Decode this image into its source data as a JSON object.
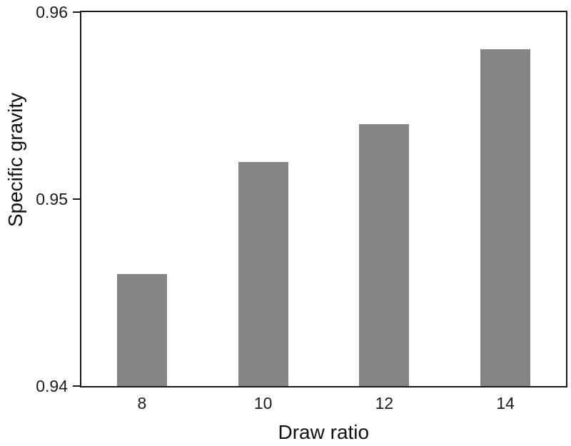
{
  "chart_data": {
    "type": "bar",
    "title": "",
    "xlabel": "Draw ratio",
    "ylabel": "Specific gravity",
    "categories": [
      "8",
      "10",
      "12",
      "14"
    ],
    "values": [
      0.946,
      0.952,
      0.954,
      0.958
    ],
    "ylim": [
      0.94,
      0.96
    ],
    "yticks": [
      {
        "value": 0.94,
        "label": "0.94"
      },
      {
        "value": 0.95,
        "label": "0.95"
      },
      {
        "value": 0.96,
        "label": "0.96"
      }
    ],
    "grid": false,
    "legend": null,
    "bar_color": "#858585",
    "frame_color": "#1a1a1a"
  },
  "layout_note": "single bar chart, boxed frame, no gridlines"
}
